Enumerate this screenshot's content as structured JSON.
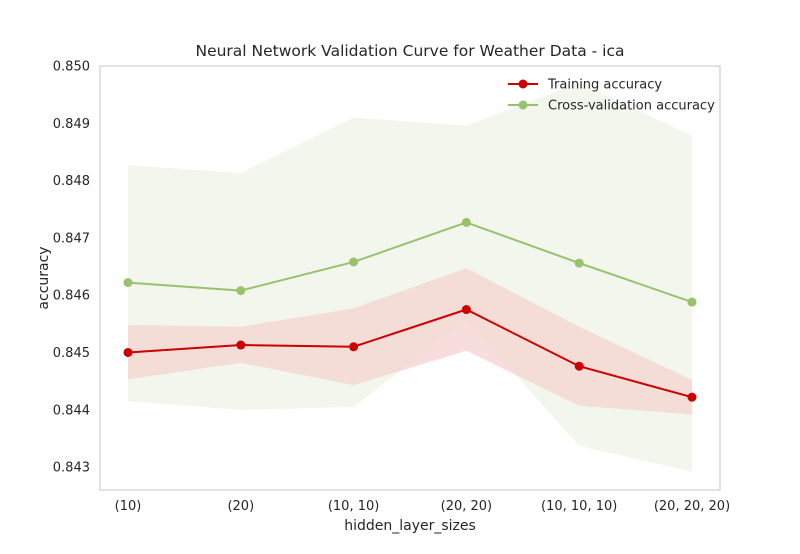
{
  "chart_data": {
    "type": "line",
    "title": "Neural Network Validation Curve for Weather Data - ica",
    "xlabel": "hidden_layer_sizes",
    "ylabel": "accuracy",
    "categories": [
      "(10)",
      "(20)",
      "(10, 10)",
      "(20, 20)",
      "(10, 10, 10)",
      "(20, 20, 20)"
    ],
    "ylim": [
      0.8426,
      0.85
    ],
    "yticks": [
      "0.843",
      "0.844",
      "0.845",
      "0.846",
      "0.847",
      "0.848",
      "0.849",
      "0.850"
    ],
    "grid": false,
    "legend_position": "top-right",
    "series": [
      {
        "name": "Training accuracy",
        "color": "#cc0000",
        "band_color": "#f4d3d0",
        "values": [
          0.845,
          0.84513,
          0.8451,
          0.84575,
          0.84476,
          0.84422
        ],
        "band_upper": [
          0.84548,
          0.84545,
          0.84577,
          0.84647,
          0.84545,
          0.84452
        ],
        "band_lower": [
          0.84453,
          0.84482,
          0.84443,
          0.84503,
          0.84407,
          0.84392
        ]
      },
      {
        "name": "Cross-validation accuracy",
        "color": "#99c26e",
        "band_color": "#e9f0df",
        "values": [
          0.84622,
          0.84608,
          0.84658,
          0.84727,
          0.84656,
          0.84588
        ],
        "band_upper": [
          0.84827,
          0.84813,
          0.8491,
          0.84896,
          0.8497,
          0.84878
        ],
        "band_lower": [
          0.84415,
          0.844,
          0.84405,
          0.84557,
          0.84337,
          0.84292
        ]
      }
    ]
  }
}
